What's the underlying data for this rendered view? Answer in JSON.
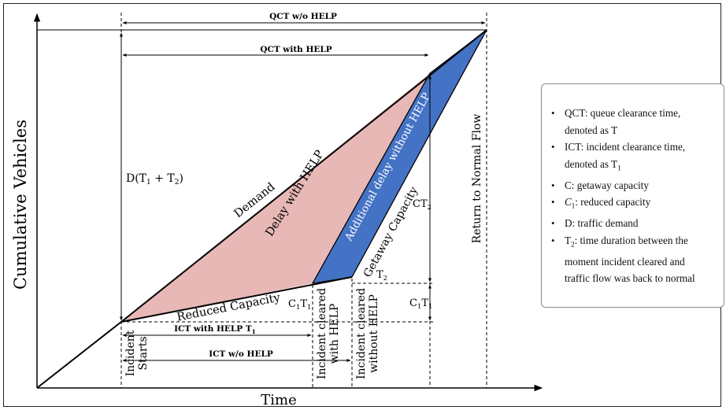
{
  "diagram": {
    "y_axis_label": "Cumulative Vehicles",
    "x_axis_label": "Time",
    "top_arrow_label": "QCT w/o HELP",
    "second_arrow_label": "QCT with HELP",
    "ict_help_label": "ICT with HELP T",
    "ict_help_sub": "1",
    "ict_nohelp_label": "ICT w/o HELP",
    "demand_label": "Demand",
    "delay_help_label": "Delay with HELP",
    "additional_delay_label": "Additional delay without HELP",
    "getaway_label": "Getaway Capacity",
    "reduced_label": "Reduced Capacity",
    "d_label": "D(T",
    "d_sub1": "1",
    "d_plus": " + T",
    "d_sub2": "2",
    "d_close": ")",
    "ct2_label": "CT",
    "ct2_sub": "2",
    "t2_label": "T",
    "t2_sub": "2",
    "c1t1_left": "C",
    "c1t1_left_sub": "1",
    "c1t1_left_t": "T",
    "c1t1_left_t_sub": "1",
    "c1t1_right": "C",
    "c1t1_right_sub": "1",
    "c1t1_right_t": "T",
    "c1t1_right_t_sub": "1",
    "incident_starts_1": "Incident",
    "incident_starts_2": "Starts",
    "cleared_help_1": "Incident cleared",
    "cleared_help_2": "with HELP",
    "cleared_nohelp_1": "Incident cleared",
    "cleared_nohelp_2": "without HELP",
    "return_label": "Return to Normal Flow",
    "colors": {
      "delay_fill": "#e7b8b6",
      "additional_fill": "#4472c4",
      "line": "#000000"
    }
  },
  "legend": {
    "items": [
      {
        "line1": "QCT: queue clearance time,",
        "line2": "denoted as T"
      },
      {
        "line1": "ICT: incident clearance time,",
        "line2": "denoted as T",
        "line2_sub": "1"
      },
      {
        "line1": "C: getaway capacity"
      },
      {
        "line1_pre": "C",
        "line1_sub": "1",
        "line1": ": reduced capacity"
      },
      {
        "line1": "D: traffic demand"
      },
      {
        "line1_pre": "T",
        "line1_sub": "2",
        "line1": ": time duration between the",
        "line2": "moment incident cleared and",
        "line3": "traffic flow was back to normal"
      }
    ]
  }
}
